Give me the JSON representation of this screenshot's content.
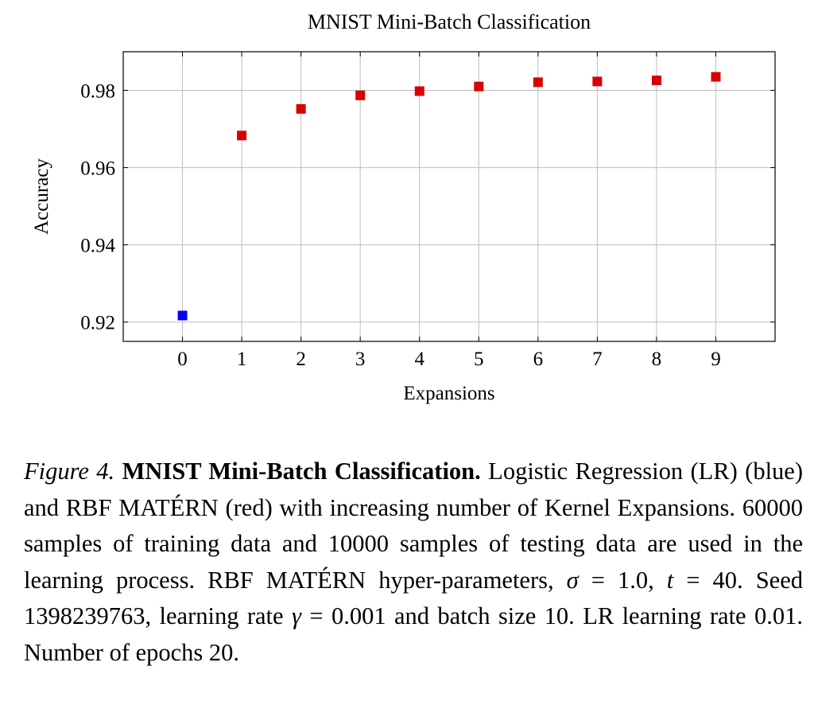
{
  "chart_data": {
    "type": "scatter",
    "title": "MNIST Mini-Batch Classification",
    "xlabel": "Expansions",
    "ylabel": "Accuracy",
    "xlim": [
      -1,
      10
    ],
    "ylim": [
      0.915,
      0.99
    ],
    "x_ticks": [
      0,
      1,
      2,
      3,
      4,
      5,
      6,
      7,
      8,
      9
    ],
    "x_tick_labels": [
      "0",
      "1",
      "2",
      "3",
      "4",
      "5",
      "6",
      "7",
      "8",
      "9"
    ],
    "y_ticks": [
      0.92,
      0.94,
      0.96,
      0.98
    ],
    "y_tick_labels": [
      "0.92",
      "0.94",
      "0.96",
      "0.98"
    ],
    "grid": true,
    "legend": false,
    "series": [
      {
        "color": "#0000ff",
        "marker": "square",
        "x": [
          0
        ],
        "y": [
          0.9217
        ]
      },
      {
        "color": "#d80000",
        "marker": "square",
        "x": [
          1,
          2,
          3,
          4,
          5,
          6,
          7,
          8,
          9
        ],
        "y": [
          0.9683,
          0.9752,
          0.9787,
          0.9798,
          0.981,
          0.9821,
          0.9823,
          0.9826,
          0.9835
        ]
      }
    ]
  },
  "caption": {
    "label": "Figure 4.",
    "title": "MNIST Mini-Batch Classification.",
    "text_1": " Logistic Regression (LR) (blue) and RBF MATÉRN (red) with increasing number of Kernel Expansions. 60000 samples of training data and 10000 samples of testing data are used in the learning process.  RBF MATÉRN hyper-parameters, ",
    "sigma_symbol": "σ",
    "sigma_value": " = 1.0, ",
    "t_symbol": "t",
    "t_value": " = 40. Seed 1398239763, learning rate ",
    "gamma_symbol": "γ",
    "gamma_value": " = 0.001 and batch size 10. LR learning rate 0.01. Number of epochs 20."
  }
}
